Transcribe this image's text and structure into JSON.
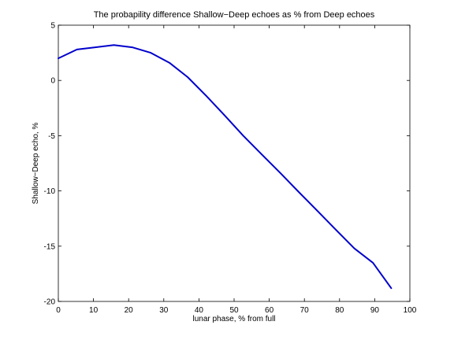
{
  "chart_data": {
    "type": "line",
    "title": "The probapility difference Shallow−Deep echoes as % from Deep echoes",
    "xlabel": "lunar phase, % from full",
    "ylabel": "Shallow−Deep echo, %",
    "xlim": [
      0,
      100
    ],
    "ylim": [
      -20,
      5
    ],
    "xticks": [
      0,
      10,
      20,
      30,
      40,
      50,
      60,
      70,
      80,
      90,
      100
    ],
    "yticks": [
      5,
      0,
      -5,
      -10,
      -15,
      -20
    ],
    "grid": false,
    "line_color": "#0000cc",
    "series": [
      {
        "x": [
          0,
          5.3,
          10.5,
          15.8,
          21,
          26.3,
          31.6,
          36.8,
          42.1,
          47.4,
          52.6,
          57.9,
          63.2,
          68.4,
          73.7,
          78.9,
          84.2,
          89.5,
          94.7
        ],
        "values": [
          2.0,
          2.8,
          3.0,
          3.2,
          3.0,
          2.5,
          1.6,
          0.3,
          -1.4,
          -3.2,
          -5.0,
          -6.7,
          -8.4,
          -10.1,
          -11.8,
          -13.5,
          -15.2,
          -16.5,
          -18.8
        ]
      }
    ]
  }
}
